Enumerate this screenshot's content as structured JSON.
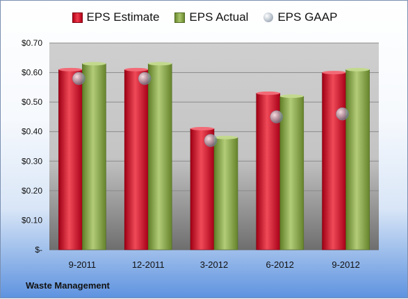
{
  "company": "Waste Management",
  "chart_data": {
    "type": "bar",
    "categories": [
      "9-2011",
      "12-2011",
      "3-2012",
      "6-2012",
      "9-2012"
    ],
    "series": [
      {
        "name": "EPS Estimate",
        "values": [
          0.61,
          0.61,
          0.41,
          0.53,
          0.6
        ],
        "color": "#d3152a"
      },
      {
        "name": "EPS Actual",
        "values": [
          0.63,
          0.63,
          0.38,
          0.52,
          0.61
        ],
        "color": "#8faf4f"
      },
      {
        "name": "EPS GAAP",
        "values": [
          0.58,
          0.58,
          0.37,
          0.45,
          0.46
        ],
        "color": "#b0b8c2",
        "marker": "sphere"
      }
    ],
    "ylim": [
      0,
      0.7
    ],
    "y_ticks": [
      0,
      0.1,
      0.2,
      0.3,
      0.4,
      0.5,
      0.6,
      0.7
    ],
    "y_tick_labels": [
      "$-",
      "$0.10",
      "$0.20",
      "$0.30",
      "$0.40",
      "$0.50",
      "$0.60",
      "$0.70"
    ],
    "grid": true,
    "legend_position": "top"
  }
}
